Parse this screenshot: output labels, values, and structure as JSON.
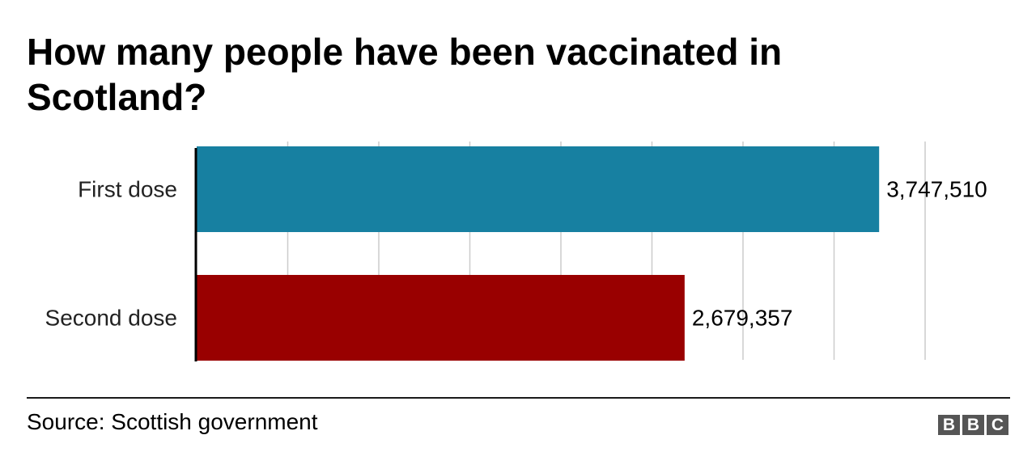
{
  "title": "How many people have been vaccinated in Scotland?",
  "source": "Source: Scottish government",
  "logo": [
    "B",
    "B",
    "C"
  ],
  "chart_data": {
    "type": "bar",
    "orientation": "horizontal",
    "categories": [
      "First dose",
      "Second dose"
    ],
    "values": [
      3747510,
      2679357
    ],
    "value_labels": [
      "3,747,510",
      "2,679,357"
    ],
    "colors": [
      "#1780a1",
      "#990000"
    ],
    "xlim": [
      0,
      4000000
    ],
    "grid": true,
    "title": "How many people have been vaccinated in Scotland?",
    "xlabel": "",
    "ylabel": ""
  }
}
